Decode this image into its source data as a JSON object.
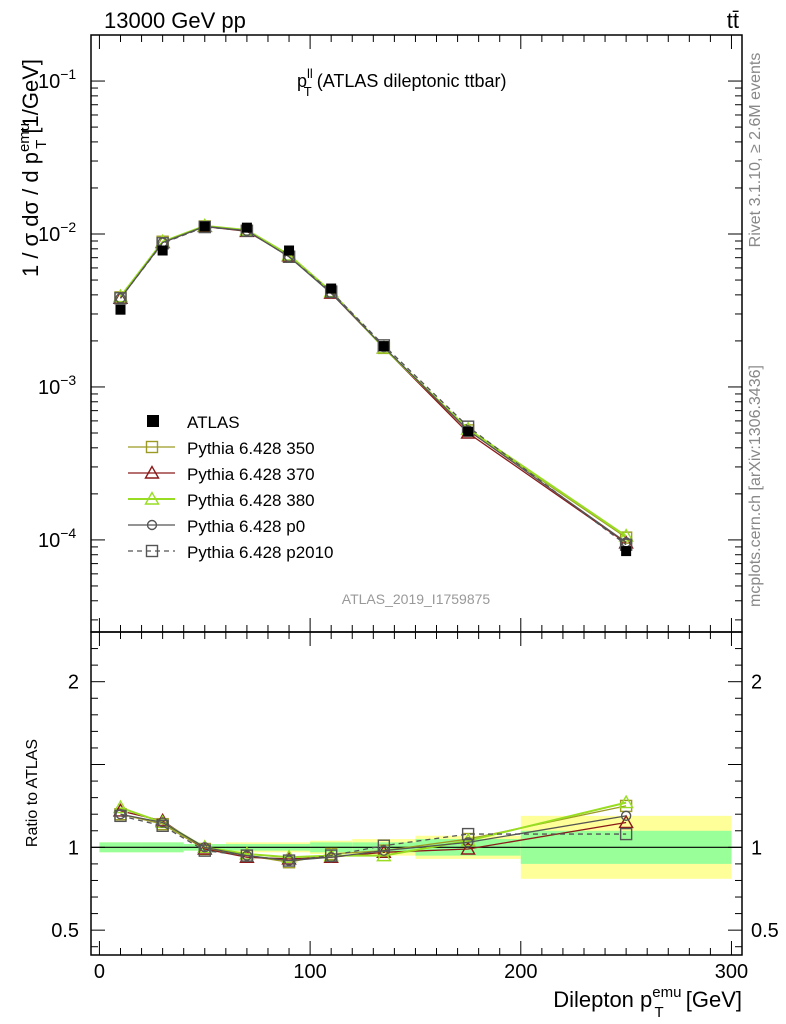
{
  "header": {
    "energy_label": "13000 GeV pp",
    "process_label": "tt̄"
  },
  "side_labels": {
    "rivet": "Rivet 3.1.10, ≥ 2.6M events",
    "mcplots": "mcplots.cern.ch [arXiv:1306.3436]"
  },
  "analysis_label": "ATLAS_2019_I1759875",
  "plot_title": {
    "main": "p",
    "sup": "ll",
    "sub": "T",
    "rest": " (ATLAS dileptonic ttbar)"
  },
  "y_label": {
    "prefix": "1 / σ  dσ / d p",
    "sup": "emu",
    "sub": "T",
    "suffix": " [1/GeV]"
  },
  "ratio_label": "Ratio to ATLAS",
  "x_label": {
    "prefix": "Dilepton p",
    "sup": "emu",
    "sub": "T",
    "suffix": " [GeV]"
  },
  "colors": {
    "atlas": "#000000",
    "p350": "#9c9c24",
    "p370": "#8b1a1a",
    "p380": "#99dd22",
    "p0": "#555555",
    "p2010": "#555555",
    "band_inner": "#99ff99",
    "band_outer": "#ffff99"
  },
  "chart_data": {
    "type": "line",
    "x_bin_edges": [
      0,
      20,
      40,
      60,
      80,
      100,
      120,
      150,
      200,
      300
    ],
    "x": [
      10,
      30,
      50,
      70,
      90,
      110,
      135,
      175,
      250
    ],
    "xlim": [
      -4,
      305
    ],
    "x_ticks": [
      "0",
      "100",
      "200",
      "300"
    ],
    "main_panel": {
      "y_scale": "log",
      "ylim": [
        2.5e-05,
        0.2
      ],
      "y_ticks": [
        {
          "base": "10",
          "exp": "−1",
          "value": 0.1
        },
        {
          "base": "10",
          "exp": "−2",
          "value": 0.01
        },
        {
          "base": "10",
          "exp": "−3",
          "value": 0.001
        },
        {
          "base": "10",
          "exp": "−4",
          "value": 0.0001
        }
      ]
    },
    "ratio_panel": {
      "ylim": [
        0.35,
        2.3
      ],
      "y_ticks": [
        "0.5",
        "1",
        "2"
      ],
      "y_tick_values": [
        0.5,
        1,
        2
      ],
      "band_inner": [
        0.03,
        0.03,
        0.02,
        0.02,
        0.02,
        0.03,
        0.03,
        0.05,
        0.1
      ],
      "band_outer": [
        0.03,
        0.03,
        0.02,
        0.03,
        0.03,
        0.04,
        0.05,
        0.07,
        0.19
      ]
    },
    "legend_placement": "middle-left",
    "atlas": {
      "name": "ATLAS",
      "values": [
        0.0032,
        0.0078,
        0.0112,
        0.011,
        0.0078,
        0.0044,
        0.00185,
        0.00051,
        8.45e-05
      ]
    },
    "series": [
      {
        "name": "Pythia 6.428 350",
        "color_key": "p350",
        "marker": "square",
        "values": [
          0.00385,
          0.0089,
          0.0112,
          0.0105,
          0.0071,
          0.0042,
          0.0018,
          0.00052,
          0.0001035
        ],
        "ratio": [
          1.2,
          1.14,
          0.99,
          0.95,
          0.91,
          0.96,
          0.98,
          1.05,
          1.25
        ]
      },
      {
        "name": "Pythia 6.428 370",
        "color_key": "p370",
        "marker": "triangle",
        "values": [
          0.0038,
          0.0088,
          0.0112,
          0.0104,
          0.0072,
          0.0041,
          0.0018,
          0.0005,
          9.55e-05
        ],
        "ratio": [
          1.22,
          1.16,
          0.99,
          0.94,
          0.93,
          0.94,
          0.97,
          0.99,
          1.15
        ]
      },
      {
        "name": "Pythia 6.428 380",
        "color_key": "p380",
        "marker": "triangle",
        "values": [
          0.0039,
          0.0089,
          0.0113,
          0.0106,
          0.0073,
          0.0042,
          0.0018,
          0.00053,
          0.000106
        ],
        "ratio": [
          1.24,
          1.15,
          1.0,
          0.96,
          0.94,
          0.95,
          0.95,
          1.04,
          1.27
        ]
      },
      {
        "name": "Pythia 6.428 p0",
        "color_key": "p0",
        "marker": "circle",
        "values": [
          0.0038,
          0.0088,
          0.0112,
          0.0105,
          0.0071,
          0.0041,
          0.00182,
          0.00052,
          9.65e-05
        ],
        "ratio": [
          1.2,
          1.15,
          1.0,
          0.95,
          0.92,
          0.94,
          0.98,
          1.03,
          1.19
        ]
      },
      {
        "name": "Pythia 6.428 p2010",
        "color_key": "p2010",
        "marker": "square",
        "dashed": true,
        "values": [
          0.0038,
          0.0087,
          0.0111,
          0.0105,
          0.0071,
          0.0042,
          0.00187,
          0.00055,
          9.3e-05
        ],
        "ratio": [
          1.19,
          1.13,
          0.98,
          0.95,
          0.92,
          0.95,
          1.01,
          1.08,
          1.08
        ]
      }
    ]
  }
}
